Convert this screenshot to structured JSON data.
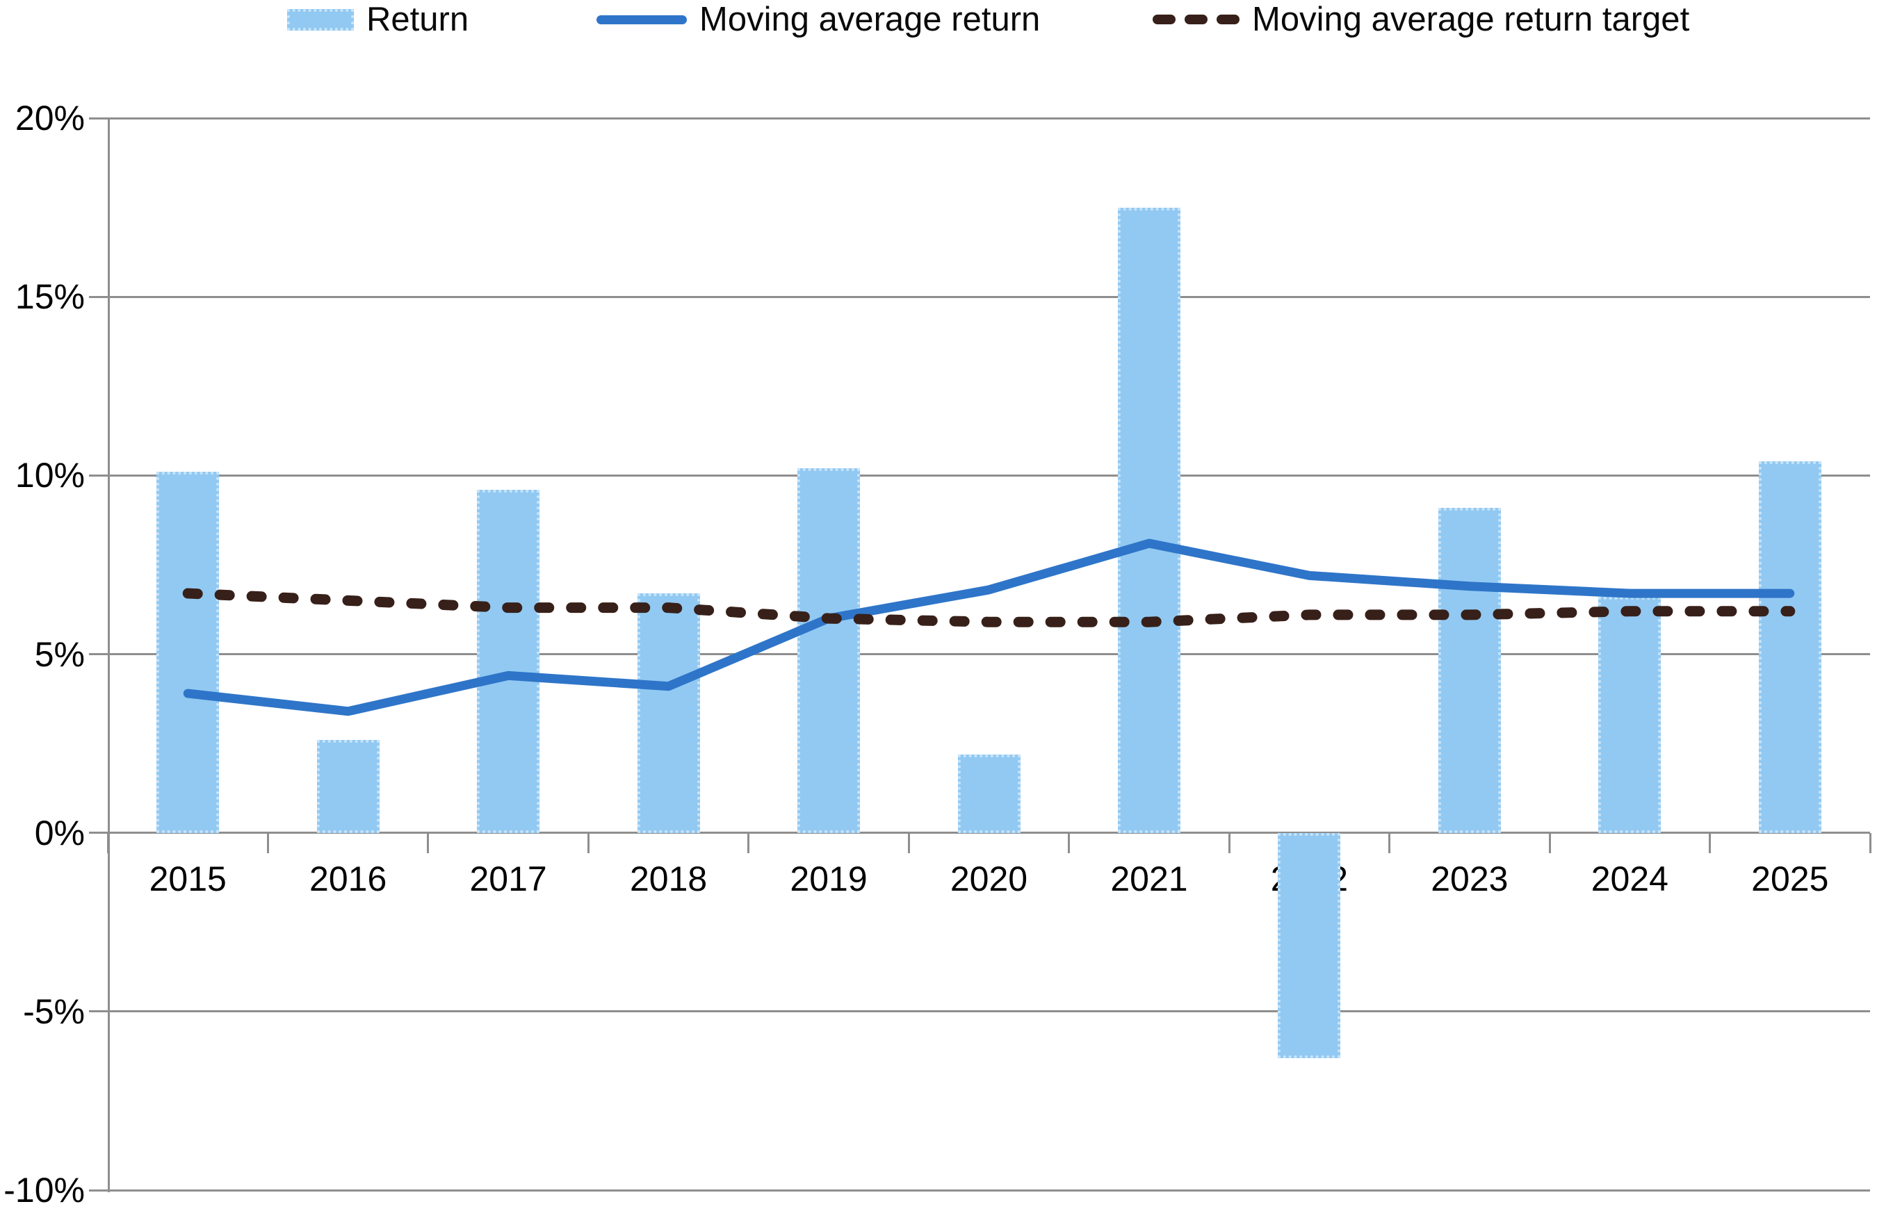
{
  "chart_data": {
    "type": "bar",
    "title": "",
    "categories": [
      "2015",
      "2016",
      "2017",
      "2018",
      "2019",
      "2020",
      "2021",
      "2022",
      "2023",
      "2024",
      "2025"
    ],
    "series": [
      {
        "name": "Return",
        "type": "bar",
        "color": "#92c9f2",
        "border_color": "#c9e5fb",
        "values": [
          10.1,
          2.6,
          9.6,
          6.7,
          10.2,
          2.2,
          17.5,
          -6.3,
          9.1,
          6.6,
          10.4
        ]
      },
      {
        "name": "Moving average return",
        "type": "line",
        "color": "#2e75c9",
        "values": [
          3.9,
          3.4,
          4.4,
          4.1,
          6.0,
          6.8,
          8.1,
          7.2,
          6.9,
          6.7,
          6.7
        ]
      },
      {
        "name": "Moving average return target",
        "type": "dashed-line",
        "color": "#372019",
        "values": [
          6.7,
          6.5,
          6.3,
          6.3,
          6.0,
          5.9,
          5.9,
          6.1,
          6.1,
          6.2,
          6.2
        ]
      }
    ],
    "yticks": [
      {
        "value": 20,
        "label": "20%"
      },
      {
        "value": 15,
        "label": "15%"
      },
      {
        "value": 10,
        "label": "10%"
      },
      {
        "value": 5,
        "label": "5%"
      },
      {
        "value": 0,
        "label": "0%"
      },
      {
        "value": -5,
        "label": "-5%"
      },
      {
        "value": -10,
        "label": "-10%"
      }
    ],
    "ylim": [
      -10,
      20
    ],
    "xlabel": "",
    "ylabel": "",
    "grid": "horizontal",
    "legend_position": "top",
    "gridline_color": "#8e8e8e",
    "text_color": "#000000"
  }
}
